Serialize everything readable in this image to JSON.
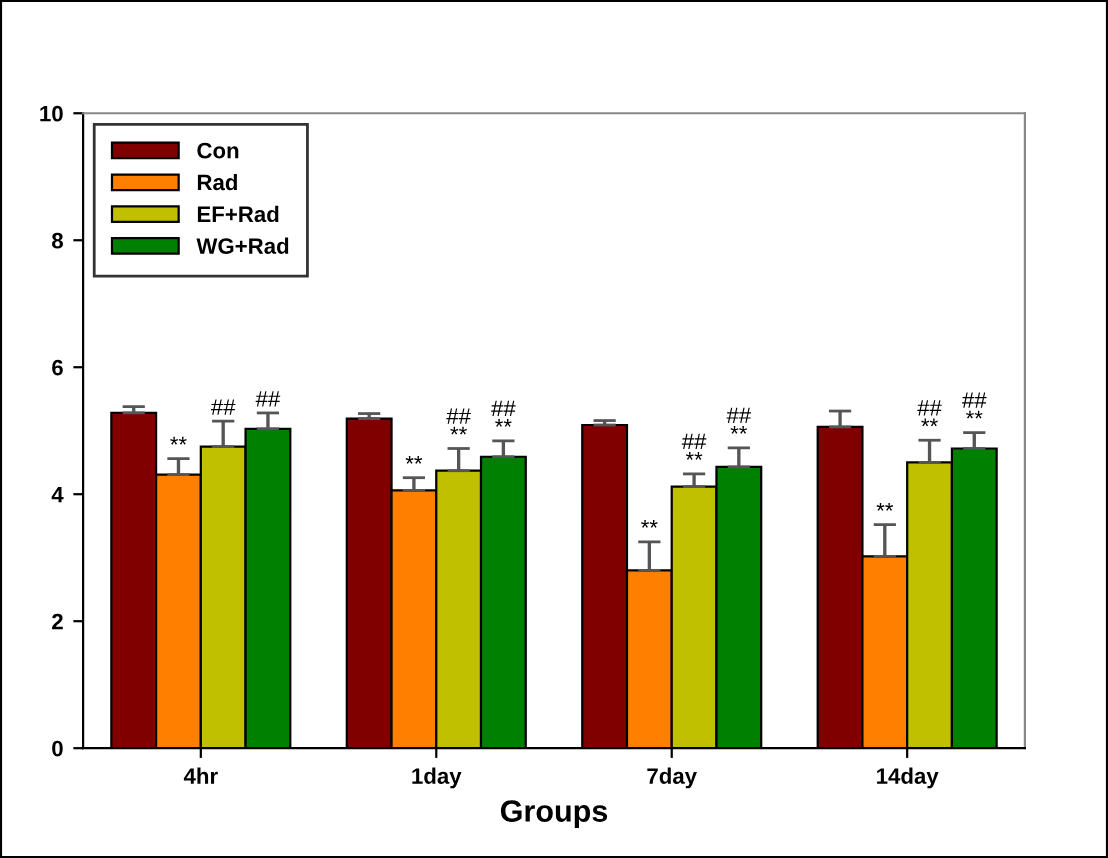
{
  "chart_data": {
    "type": "bar",
    "xlabel": "Groups",
    "categories": [
      "4hr",
      "1day",
      "7day",
      "14day"
    ],
    "series": [
      {
        "name": "Con",
        "color": "#800000",
        "values": [
          5.28,
          5.19,
          5.09,
          5.06
        ],
        "errors": [
          0.1,
          0.08,
          0.07,
          0.25
        ]
      },
      {
        "name": "Rad",
        "color": "#ff8000",
        "values": [
          4.31,
          4.06,
          2.8,
          3.02
        ],
        "errors": [
          0.25,
          0.2,
          0.45,
          0.5
        ],
        "value_labels": [
          "**",
          "**",
          "**",
          "**"
        ]
      },
      {
        "name": "EF+Rad",
        "color": "#c0c000",
        "values": [
          4.75,
          4.37,
          4.12,
          4.5
        ],
        "errors": [
          0.4,
          0.35,
          0.2,
          0.35
        ],
        "value_labels": [
          "##",
          "##\n**",
          "##\n**",
          "##\n**"
        ]
      },
      {
        "name": "WG+Rad",
        "color": "#008000",
        "values": [
          5.03,
          4.59,
          4.43,
          4.72
        ],
        "errors": [
          0.25,
          0.25,
          0.3,
          0.25
        ],
        "value_labels": [
          "##",
          "##\n**",
          "##\n**",
          "##\n**"
        ]
      }
    ],
    "ylim": [
      0,
      10
    ],
    "yticks": [
      0,
      2,
      4,
      6,
      8,
      10
    ],
    "grid": false,
    "legend": "top left"
  }
}
